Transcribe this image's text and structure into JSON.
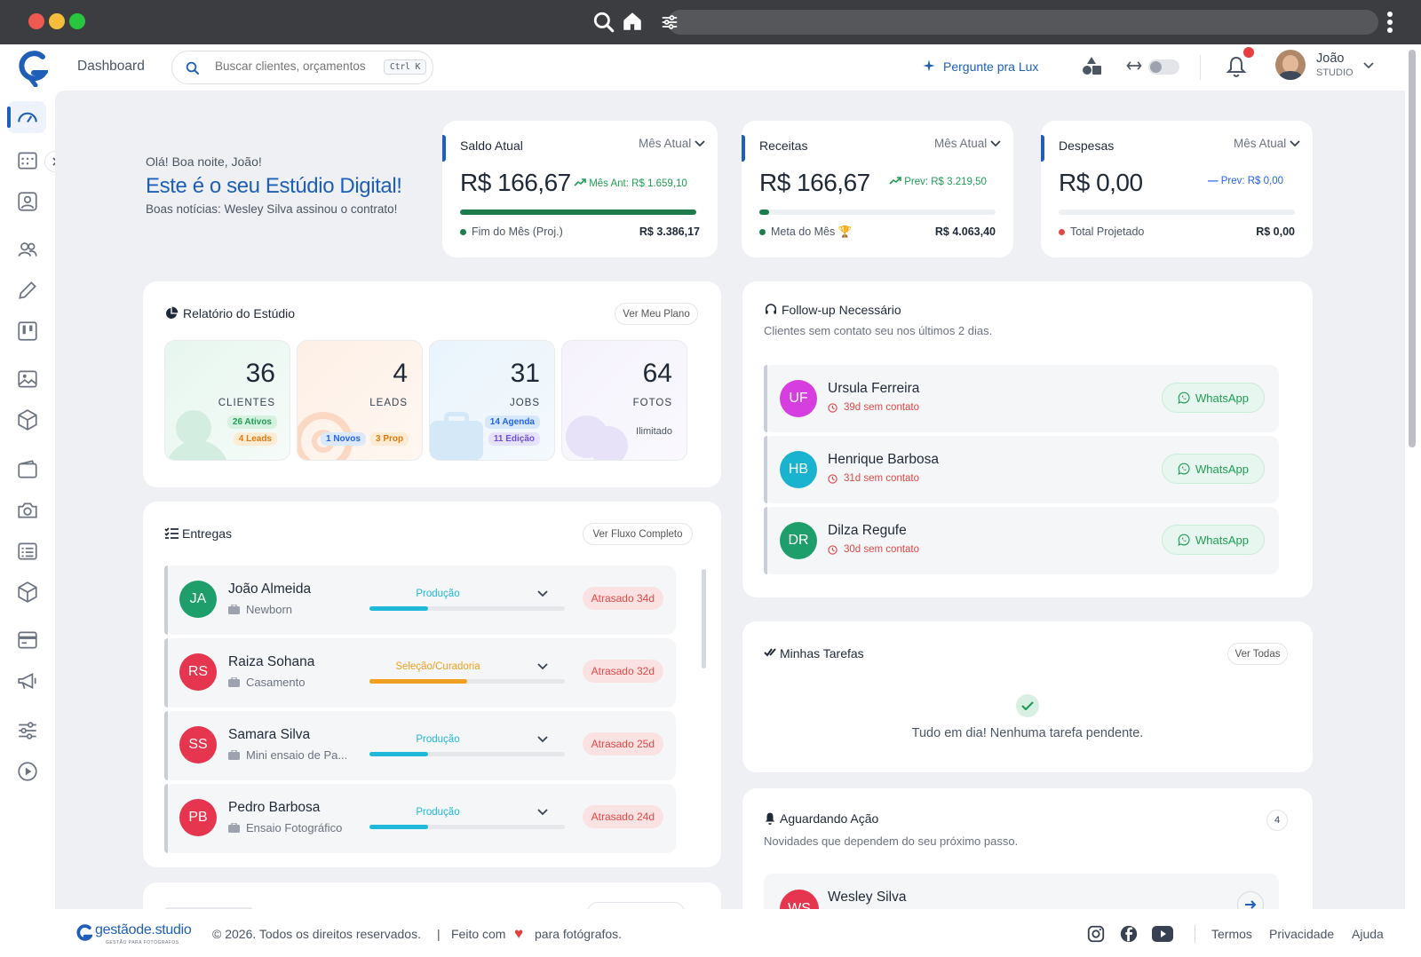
{
  "topbar": {
    "breadcrumb": "Dashboard",
    "search_placeholder": "Buscar clientes, orçamentos",
    "search_shortcut": "Ctrl K",
    "ask_lux": "Pergunte pra Lux",
    "user_name": "João",
    "user_role": "STUDIO"
  },
  "welcome": {
    "greeting": "Olá! Boa noite, João!",
    "title": "Este é o seu Estúdio Digital!",
    "news": "Boas notícias: Wesley Silva assinou o contrato!"
  },
  "kpis": {
    "saldo": {
      "title": "Saldo Atual",
      "period": "Mês Atual",
      "value": "R$ 166,67",
      "compare": "Mês Ant: R$ 1.659,10",
      "progress": 1.0,
      "foot_label": "Fim do Mês (Proj.)",
      "foot_value": "R$ 3.386,17",
      "color": "#1e7b4b"
    },
    "receitas": {
      "title": "Receitas",
      "period": "Mês Atual",
      "value": "R$ 166,67",
      "compare": "Prev: R$ 3.219,50",
      "progress": 0.04,
      "foot_label": "Meta do Mês",
      "foot_value": "R$ 4.063,40",
      "color": "#1e7b4b"
    },
    "despesas": {
      "title": "Despesas",
      "period": "Mês Atual",
      "value": "R$ 0,00",
      "compare": "Prev: R$ 0,00",
      "progress": 0.0,
      "foot_label": "Total Projetado",
      "foot_value": "R$ 0,00",
      "color": "#e04848"
    }
  },
  "report": {
    "title": "Relatório do Estúdio",
    "plan_button": "Ver Meu Plano",
    "stats": [
      {
        "number": "36",
        "label": "CLIENTES",
        "tags": [
          "26 Ativos",
          "4 Leads"
        ]
      },
      {
        "number": "4",
        "label": "LEADS",
        "tags": [
          "1 Novos",
          "3 Prop"
        ]
      },
      {
        "number": "31",
        "label": "JOBS",
        "tags": [
          "14 Agenda",
          "11 Edição"
        ]
      },
      {
        "number": "64",
        "label": "FOTOS",
        "tags": [
          "Ilimitado"
        ]
      }
    ]
  },
  "deliveries": {
    "title": "Entregas",
    "button": "Ver Fluxo Completo",
    "items": [
      {
        "initials": "JA",
        "name": "João Almeida",
        "type": "Newborn",
        "stage": "Produção",
        "progress": 0.3,
        "status": "Atrasado 34d"
      },
      {
        "initials": "RS",
        "name": "Raiza Sohana",
        "type": "Casamento",
        "stage": "Seleção/Curadoria",
        "progress": 0.5,
        "status": "Atrasado 32d"
      },
      {
        "initials": "SS",
        "name": "Samara Silva",
        "type": "Mini ensaio de Pa...",
        "stage": "Produção",
        "progress": 0.3,
        "status": "Atrasado 25d"
      },
      {
        "initials": "PB",
        "name": "Pedro Barbosa",
        "type": "Ensaio Fotográfico",
        "stage": "Produção",
        "progress": 0.3,
        "status": "Atrasado 24d"
      }
    ]
  },
  "followup": {
    "title": "Follow-up Necessário",
    "desc": "Clientes sem contato seu nos últimos 2 dias.",
    "items": [
      {
        "initials": "UF",
        "name": "Ursula Ferreira",
        "since": "39d sem contato",
        "action": "WhatsApp"
      },
      {
        "initials": "HB",
        "name": "Henrique Barbosa",
        "since": "31d sem contato",
        "action": "WhatsApp"
      },
      {
        "initials": "DR",
        "name": "Dilza Regufe",
        "since": "30d sem contato",
        "action": "WhatsApp"
      }
    ]
  },
  "tasks": {
    "title": "Minhas Tarefas",
    "button": "Ver Todas",
    "empty": "Tudo em dia! Nenhuma tarefa pendente."
  },
  "waiting": {
    "title": "Aguardando Ação",
    "count": "4",
    "desc": "Novidades que dependem do seu próximo passo.",
    "first_initials": "WS",
    "first_name": "Wesley Silva"
  },
  "footer": {
    "brand": "gestãode.studio",
    "brand_tag": "GESTÃO PARA FOTÓGRAFOS",
    "copyright": "© 2026. Todos os direitos reservados.",
    "sep": "|",
    "made_prefix": "Feito com",
    "made_suffix": "para fotógrafos.",
    "links": [
      "Termos",
      "Privacidade",
      "Ajuda"
    ]
  }
}
